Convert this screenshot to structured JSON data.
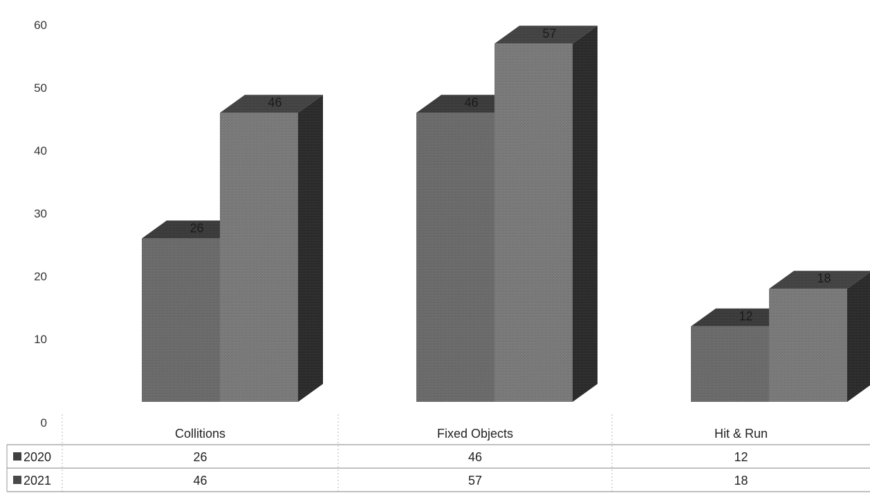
{
  "chart_data": {
    "type": "bar",
    "title": "",
    "xlabel": "",
    "ylabel": "",
    "ylim": [
      0,
      60
    ],
    "yticks": [
      0,
      10,
      20,
      30,
      40,
      50,
      60
    ],
    "categories": [
      "Collitions",
      "Fixed Objects",
      "Hit & Run"
    ],
    "series": [
      {
        "name": "2020",
        "values": [
          26,
          46,
          12
        ],
        "color": "#6b6b6b"
      },
      {
        "name": "2021",
        "values": [
          46,
          57,
          18
        ],
        "color": "#7a7a7a"
      }
    ],
    "data_labels": true,
    "data_table": true,
    "grid": false,
    "legend": "data-table-rows"
  }
}
